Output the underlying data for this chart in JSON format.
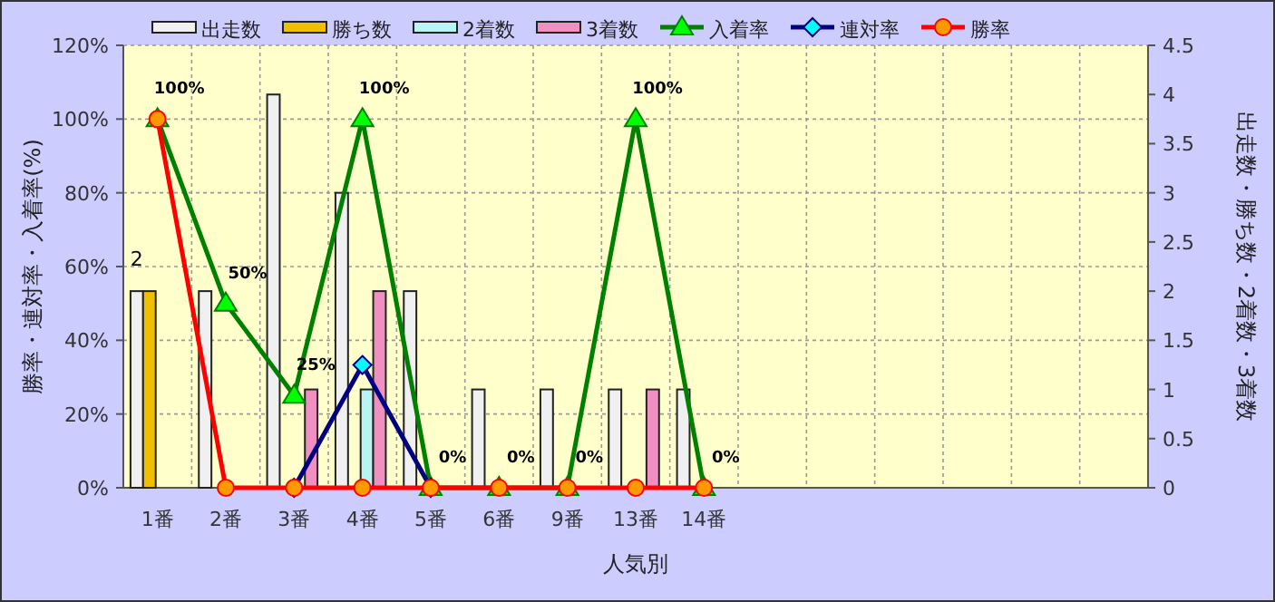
{
  "chart_data": {
    "type": "bar",
    "xlabel": "人気別",
    "ylabel": "勝率・連対率・入着率(%)",
    "y2label": "出走数・勝ち数・2着数・3着数",
    "categories": [
      "1番",
      "2番",
      "3番",
      "4番",
      "5番",
      "6番",
      "9番",
      "13番",
      "14番",
      null,
      null,
      null,
      null,
      null,
      null
    ],
    "ylim": [
      0,
      120
    ],
    "yticks": [
      {
        "value": 0,
        "label": "0%"
      },
      {
        "value": 20,
        "label": "20%"
      },
      {
        "value": 40,
        "label": "40%"
      },
      {
        "value": 60,
        "label": "60%"
      },
      {
        "value": 80,
        "label": "80%"
      },
      {
        "value": 100,
        "label": "100%"
      },
      {
        "value": 120,
        "label": "120%"
      }
    ],
    "y2lim": [
      0,
      4.5
    ],
    "y2ticks": [
      0,
      0.5,
      1,
      1.5,
      2,
      2.5,
      3,
      3.5,
      4,
      4.5
    ],
    "grid": true,
    "legend": "top",
    "series": [
      {
        "name": "出走数",
        "axis": "y2",
        "color": "#f0f0f0",
        "values": [
          2,
          2,
          4,
          3,
          2,
          1,
          1,
          1,
          1,
          null,
          null,
          null,
          null,
          null,
          null
        ],
        "value_labels": [
          "2",
          null,
          null,
          null,
          null,
          null,
          null,
          null,
          null,
          null,
          null,
          null,
          null,
          null,
          null
        ]
      },
      {
        "name": "勝ち数",
        "axis": "y2",
        "color": "#f0c000",
        "values": [
          2,
          0,
          0,
          0,
          0,
          0,
          0,
          0,
          0,
          null,
          null,
          null,
          null,
          null,
          null
        ]
      },
      {
        "name": "2着数",
        "axis": "y2",
        "color": "#b8f4f4",
        "values": [
          0,
          0,
          0,
          1,
          0,
          0,
          0,
          0,
          0,
          null,
          null,
          null,
          null,
          null,
          null
        ]
      },
      {
        "name": "3着数",
        "axis": "y2",
        "color": "#f090c0",
        "values": [
          0,
          0,
          1,
          2,
          0,
          0,
          0,
          1,
          0,
          null,
          null,
          null,
          null,
          null,
          null
        ]
      },
      {
        "name": "入着率",
        "type": "line",
        "color": "#008000",
        "marker": "triangle",
        "values": [
          100,
          50,
          25,
          100,
          0,
          0,
          0,
          100,
          0,
          null,
          null,
          null,
          null,
          null,
          null
        ],
        "value_labels": [
          "100%",
          "50%",
          "25%",
          "100%",
          "0%",
          "0%",
          "0%",
          "100%",
          "0%",
          null,
          null,
          null,
          null,
          null,
          null
        ]
      },
      {
        "name": "連対率",
        "type": "line",
        "color": "#000080",
        "marker": "diamond",
        "values": [
          null,
          null,
          0,
          33.3,
          0,
          null,
          null,
          null,
          null,
          null,
          null,
          null,
          null,
          null,
          null
        ]
      },
      {
        "name": "勝率",
        "type": "line",
        "color": "#ff0000",
        "marker": "circle",
        "values": [
          100,
          0,
          0,
          0,
          0,
          0,
          0,
          0,
          0,
          null,
          null,
          null,
          null,
          null,
          null
        ]
      }
    ]
  }
}
